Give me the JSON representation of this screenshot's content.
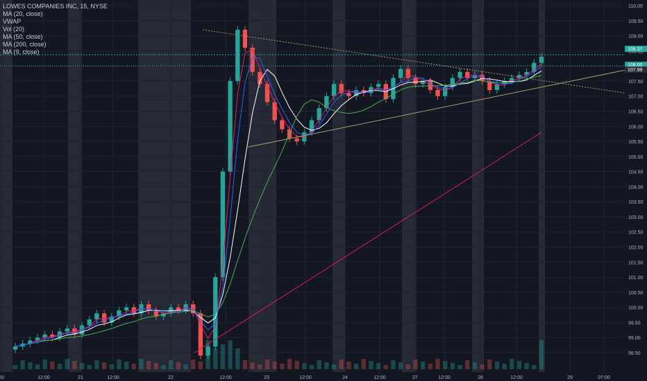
{
  "chart_data": {
    "type": "candlestick",
    "title": "LOWES COMPANIES INC, 15, NYSE",
    "indicators": [
      "MA (20, close)",
      "VWAP",
      "Vol (20)",
      "MA (50, close)",
      "MA (200, close)",
      "MA (9, close)"
    ],
    "y_axis": {
      "ticks": [
        "110.00",
        "109.50",
        "109.00",
        "108.50",
        "108.00",
        "107.50",
        "107.00",
        "106.50",
        "106.00",
        "105.50",
        "105.00",
        "104.50",
        "104.00",
        "103.50",
        "103.00",
        "102.50",
        "102.00",
        "101.50",
        "101.00",
        "100.50",
        "100.00",
        "99.50",
        "99.00",
        "98.50"
      ],
      "ylim": [
        98.5,
        110.0
      ]
    },
    "x_axis": {
      "ticks": [
        "20",
        "12:00",
        "21",
        "12:00",
        "22",
        "12:00",
        "23",
        "12:00",
        "24",
        "12:00",
        "27",
        "12:00",
        "28",
        "12:00",
        "29",
        "07:00"
      ]
    },
    "price_labels": [
      "108.37",
      "108.00",
      "107.98"
    ],
    "approx_closes": [
      98.7,
      98.8,
      98.9,
      99.0,
      99.1,
      99.0,
      99.2,
      99.3,
      99.1,
      99.4,
      99.6,
      99.8,
      99.5,
      99.7,
      99.9,
      100.0,
      99.8,
      100.1,
      99.9,
      99.7,
      99.8,
      100.0,
      99.9,
      100.1,
      99.8,
      98.4,
      98.7,
      101.0,
      104.5,
      107.5,
      109.2,
      108.6,
      107.8,
      107.4,
      106.8,
      106.2,
      105.9,
      105.6,
      105.5,
      105.8,
      106.2,
      106.6,
      107.0,
      107.4,
      107.1,
      107.0,
      107.2,
      107.1,
      107.3,
      107.4,
      106.9,
      107.6,
      107.9,
      107.6,
      107.4,
      107.5,
      107.2,
      107.0,
      107.3,
      107.6,
      107.8,
      107.6,
      107.7,
      107.5,
      107.2,
      107.4,
      107.5,
      107.6,
      107.7,
      107.8,
      108.1,
      108.3
    ],
    "trendlines": [
      {
        "color": "#a89d6b",
        "from": [
          "22",
          109.2
        ],
        "to": [
          "29",
          107.0
        ]
      },
      {
        "color": "#a89d6b",
        "from": [
          "23",
          105.3
        ],
        "to": [
          "29",
          108.0
        ]
      },
      {
        "color": "#d81b60",
        "from": [
          "22",
          98.5
        ],
        "to": [
          "28",
          105.8
        ]
      }
    ]
  }
}
